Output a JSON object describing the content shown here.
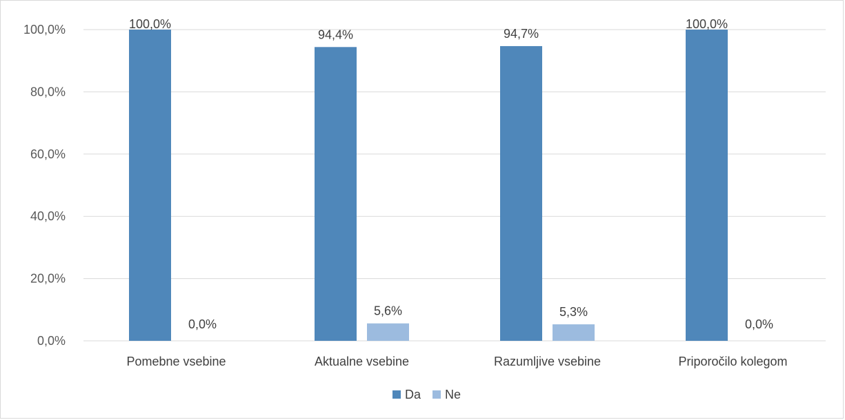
{
  "chart_data": {
    "type": "bar",
    "categories": [
      "Pomebne vsebine",
      "Aktualne vsebine",
      "Razumljive vsebine",
      "Priporočilo kolegom"
    ],
    "series": [
      {
        "name": "Da",
        "values": [
          100.0,
          94.4,
          94.7,
          100.0
        ],
        "labels": [
          "100,0%",
          "94,4%",
          "94,7%",
          "100,0%"
        ],
        "color": "#4f87ba"
      },
      {
        "name": "Ne",
        "values": [
          0.0,
          5.6,
          5.3,
          0.0
        ],
        "labels": [
          "0,0%",
          "5,6%",
          "5,3%",
          "0,0%"
        ],
        "color": "#9cbbdf"
      }
    ],
    "ylim": [
      0,
      100
    ],
    "yticks": [
      0,
      20,
      40,
      60,
      80,
      100
    ],
    "ytick_labels": [
      "0,0%",
      "20,0%",
      "40,0%",
      "60,0%",
      "80,0%",
      "100,0%"
    ],
    "grid": true,
    "legend_position": "bottom",
    "title": "",
    "xlabel": "",
    "ylabel": ""
  }
}
